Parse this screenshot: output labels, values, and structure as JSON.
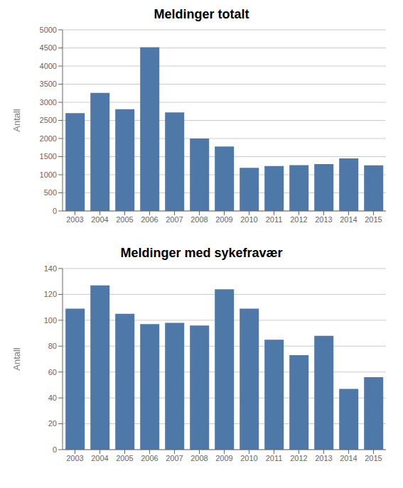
{
  "chart_data": [
    {
      "type": "bar",
      "title": "Meldinger totalt",
      "ylabel": "Antall",
      "categories": [
        "2003",
        "2004",
        "2005",
        "2006",
        "2007",
        "2008",
        "2009",
        "2010",
        "2011",
        "2012",
        "2013",
        "2014",
        "2015"
      ],
      "values": [
        2700,
        3260,
        2810,
        4520,
        2720,
        2000,
        1780,
        1190,
        1240,
        1265,
        1295,
        1450,
        1260
      ],
      "ylim": [
        0,
        5000
      ],
      "yticks": [
        0,
        500,
        1000,
        1500,
        2000,
        2500,
        3000,
        3500,
        4000,
        4500,
        5000
      ],
      "color": "#4e78a8",
      "grid": true
    },
    {
      "type": "bar",
      "title": "Meldinger med sykefravær",
      "ylabel": "Antall",
      "categories": [
        "2003",
        "2004",
        "2005",
        "2006",
        "2007",
        "2008",
        "2009",
        "2010",
        "2011",
        "2012",
        "2013",
        "2014",
        "2015"
      ],
      "values": [
        109,
        127,
        105,
        97,
        98,
        96,
        124,
        109,
        85,
        73,
        88,
        47,
        56
      ],
      "ylim": [
        0,
        140
      ],
      "yticks": [
        0,
        20,
        40,
        60,
        80,
        100,
        120,
        140
      ],
      "color": "#4e78a8",
      "grid": true
    }
  ]
}
